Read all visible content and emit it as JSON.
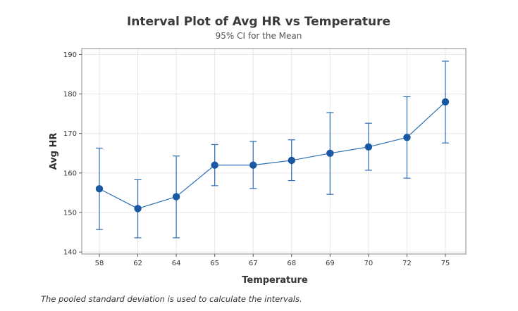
{
  "chart_data": {
    "type": "interval",
    "title": "Interval Plot of Avg HR vs Temperature",
    "subtitle": "95% CI for the Mean",
    "xlabel": "Temperature",
    "ylabel": "Avg HR",
    "categories": [
      "58",
      "62",
      "64",
      "65",
      "67",
      "68",
      "69",
      "70",
      "72",
      "75"
    ],
    "means": [
      156,
      151,
      154,
      162,
      162,
      163.2,
      165,
      166.6,
      169,
      178
    ],
    "lower": [
      145.7,
      143.6,
      143.6,
      156.8,
      156.1,
      158.1,
      154.6,
      160.7,
      158.7,
      167.6
    ],
    "upper": [
      166.3,
      158.3,
      164.3,
      167.2,
      168,
      168.4,
      175.3,
      172.6,
      179.3,
      188.3
    ],
    "ylim": [
      139.5,
      191.5
    ],
    "yticks": [
      140,
      150,
      160,
      170,
      180,
      190
    ],
    "grid": true,
    "colors": {
      "series": "#2c6fb3",
      "marker": "#1a58a3"
    },
    "note": "The pooled standard deviation is used to calculate the intervals."
  }
}
